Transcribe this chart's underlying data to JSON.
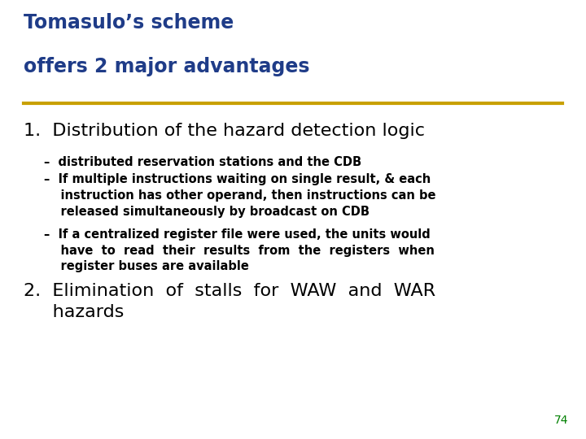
{
  "title_line1": "Tomasulo’s scheme",
  "title_line2": "offers 2 major advantages",
  "title_color": "#1F3C88",
  "underline_color": "#C8A000",
  "background_color": "#FFFFFF",
  "item1_heading": "1.  Distribution of the hazard detection logic",
  "bullet1": "–  distributed reservation stations and the CDB",
  "bullet2_line1": "–  If multiple instructions waiting on single result, & each",
  "bullet2_line2": "    instruction has other operand, then instructions can be",
  "bullet2_line3": "    released simultaneously by broadcast on CDB",
  "bullet3_line1": "–  If a centralized register file were used, the units would",
  "bullet3_line2": "    have  to  read  their  results  from  the  registers  when",
  "bullet3_line3": "    register buses are available",
  "item2_line1": "2.  Elimination  of  stalls  for  WAW  and  WAR",
  "item2_line2": "     hazards",
  "title_fontsize": 17,
  "item1_heading_size": 16,
  "item2_size": 16,
  "bullet_size": 10.5,
  "page_num": "74",
  "page_num_color": "#008000"
}
